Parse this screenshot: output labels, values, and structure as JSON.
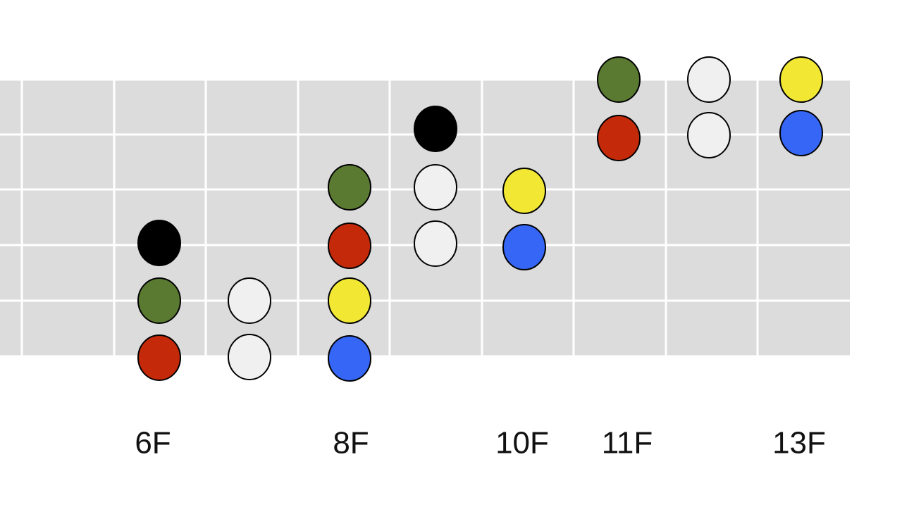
{
  "fret_labels": [
    "6F",
    "8F",
    "10F",
    "11F",
    "13F"
  ]
}
